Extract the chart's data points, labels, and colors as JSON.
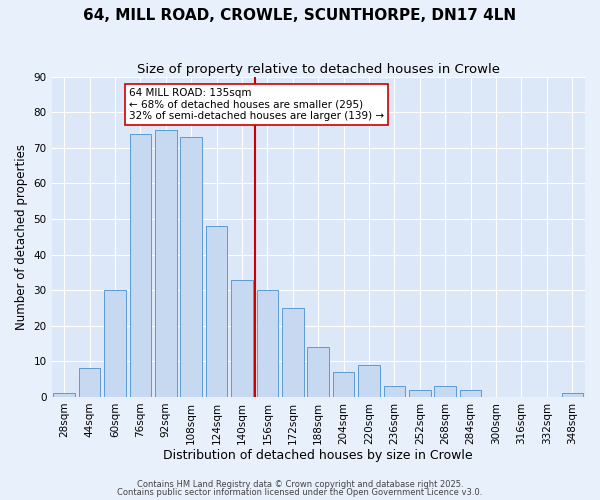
{
  "title": "64, MILL ROAD, CROWLE, SCUNTHORPE, DN17 4LN",
  "subtitle": "Size of property relative to detached houses in Crowle",
  "xlabel": "Distribution of detached houses by size in Crowle",
  "ylabel": "Number of detached properties",
  "bar_labels": [
    "28sqm",
    "44sqm",
    "60sqm",
    "76sqm",
    "92sqm",
    "108sqm",
    "124sqm",
    "140sqm",
    "156sqm",
    "172sqm",
    "188sqm",
    "204sqm",
    "220sqm",
    "236sqm",
    "252sqm",
    "268sqm",
    "284sqm",
    "300sqm",
    "316sqm",
    "332sqm",
    "348sqm"
  ],
  "bar_values": [
    1,
    8,
    30,
    74,
    75,
    73,
    48,
    33,
    30,
    25,
    14,
    7,
    9,
    3,
    2,
    3,
    2,
    0,
    0,
    0,
    1
  ],
  "bar_color": "#c6d9f1",
  "bar_edge_color": "#5b9bd5",
  "vline_color": "#cc0000",
  "vline_pos": 7.5,
  "ylim": [
    0,
    90
  ],
  "yticks": [
    0,
    10,
    20,
    30,
    40,
    50,
    60,
    70,
    80,
    90
  ],
  "annotation_title": "64 MILL ROAD: 135sqm",
  "annotation_line1": "← 68% of detached houses are smaller (295)",
  "annotation_line2": "32% of semi-detached houses are larger (139) →",
  "footnote1": "Contains HM Land Registry data © Crown copyright and database right 2025.",
  "footnote2": "Contains public sector information licensed under the Open Government Licence v3.0.",
  "background_color": "#e8f0fb",
  "plot_background_color": "#dce8f8",
  "grid_color": "#ffffff",
  "title_fontsize": 11,
  "subtitle_fontsize": 9.5,
  "xlabel_fontsize": 9,
  "ylabel_fontsize": 8.5,
  "tick_fontsize": 7.5,
  "annotation_fontsize": 7.5
}
